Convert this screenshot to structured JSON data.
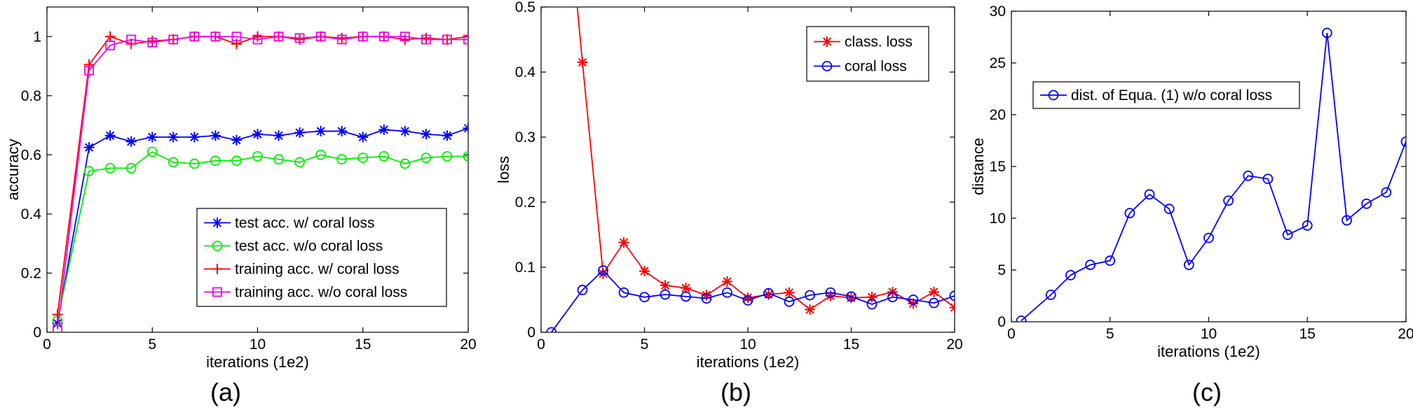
{
  "chart_data": [
    {
      "type": "line",
      "caption": "(a)",
      "xlabel": "iterations (1e2)",
      "ylabel": "accuracy",
      "xlim": [
        0,
        20
      ],
      "ylim": [
        0,
        1.1
      ],
      "xticks": [
        0,
        5,
        10,
        15,
        20
      ],
      "yticks": [
        0,
        0.2,
        0.4,
        0.6,
        0.8,
        1
      ],
      "ytick_labels": [
        "0",
        "0.2",
        "0.4",
        "0.6",
        "0.8",
        "1"
      ],
      "grid": false,
      "legend_position": "lower-right",
      "x": [
        0.5,
        2,
        3,
        4,
        5,
        6,
        7,
        8,
        9,
        10,
        11,
        12,
        13,
        14,
        15,
        16,
        17,
        18,
        19,
        20
      ],
      "series": [
        {
          "name": "test acc. w/ coral loss",
          "color": "#0000ff",
          "marker": "asterisk",
          "values": [
            0.03,
            0.625,
            0.665,
            0.645,
            0.66,
            0.66,
            0.66,
            0.665,
            0.65,
            0.67,
            0.665,
            0.675,
            0.68,
            0.68,
            0.66,
            0.685,
            0.68,
            0.67,
            0.665,
            0.69
          ]
        },
        {
          "name": "test acc. w/o coral loss",
          "color": "#00ee00",
          "marker": "circle",
          "values": [
            0.04,
            0.545,
            0.555,
            0.555,
            0.61,
            0.575,
            0.57,
            0.58,
            0.58,
            0.595,
            0.585,
            0.575,
            0.6,
            0.585,
            0.59,
            0.595,
            0.57,
            0.59,
            0.595,
            0.595
          ]
        },
        {
          "name": "training acc. w/ coral loss",
          "color": "#ff0000",
          "marker": "plus",
          "values": [
            0.06,
            0.905,
            1.0,
            0.975,
            0.985,
            0.99,
            1.0,
            1.0,
            0.975,
            1.0,
            1.0,
            0.99,
            1.0,
            0.995,
            1.0,
            1.0,
            0.99,
            0.995,
            0.99,
            1.0
          ]
        },
        {
          "name": "training acc. w/o coral loss",
          "color": "#ee00ee",
          "marker": "square",
          "values": [
            0.01,
            0.885,
            0.97,
            0.99,
            0.98,
            0.99,
            1.0,
            1.0,
            1.0,
            0.99,
            1.0,
            0.995,
            1.0,
            0.99,
            1.0,
            1.0,
            1.0,
            0.99,
            0.99,
            0.99
          ]
        }
      ]
    },
    {
      "type": "line",
      "caption": "(b)",
      "xlabel": "iterations (1e2)",
      "ylabel": "loss",
      "xlim": [
        0,
        20
      ],
      "ylim": [
        0,
        0.5
      ],
      "xticks": [
        0,
        5,
        10,
        15,
        20
      ],
      "yticks": [
        0,
        0.1,
        0.2,
        0.3,
        0.4,
        0.5
      ],
      "ytick_labels": [
        "0",
        "0.1",
        "0.2",
        "0.3",
        "0.4",
        "0.5"
      ],
      "grid": false,
      "legend_position": "top-right",
      "series": [
        {
          "name": "class. loss",
          "color": "#ff0000",
          "marker": "asterisk",
          "x": [
            2,
            3,
            4,
            5,
            6,
            7,
            8,
            9,
            10,
            11,
            12,
            13,
            14,
            15,
            16,
            17,
            18,
            19,
            20
          ],
          "values": [
            0.415,
            0.09,
            0.138,
            0.094,
            0.072,
            0.068,
            0.057,
            0.078,
            0.053,
            0.058,
            0.061,
            0.035,
            0.056,
            0.053,
            0.054,
            0.062,
            0.044,
            0.062,
            0.038
          ],
          "lead_in": {
            "x": 1.75,
            "y": 0.5
          }
        },
        {
          "name": "coral loss",
          "color": "#0000ff",
          "marker": "circle",
          "x": [
            0.5,
            2,
            3,
            4,
            5,
            6,
            7,
            8,
            9,
            10,
            11,
            12,
            13,
            14,
            15,
            16,
            17,
            18,
            19,
            20
          ],
          "values": [
            0.0,
            0.065,
            0.095,
            0.061,
            0.054,
            0.058,
            0.055,
            0.052,
            0.061,
            0.049,
            0.06,
            0.047,
            0.057,
            0.061,
            0.055,
            0.043,
            0.054,
            0.05,
            0.045,
            0.056
          ]
        }
      ]
    },
    {
      "type": "line",
      "caption": "(c)",
      "xlabel": "iterations (1e2)",
      "ylabel": "distance",
      "xlim": [
        0,
        20
      ],
      "ylim": [
        0,
        30
      ],
      "xticks": [
        0,
        5,
        10,
        15,
        20
      ],
      "yticks": [
        0,
        5,
        10,
        15,
        20,
        25,
        30
      ],
      "ytick_labels": [
        "0",
        "5",
        "10",
        "15",
        "20",
        "25",
        "30"
      ],
      "grid": false,
      "legend_position": "upper-left",
      "x": [
        0.5,
        2,
        3,
        4,
        5,
        6,
        7,
        8,
        9,
        10,
        11,
        12,
        13,
        14,
        15,
        16,
        17,
        18,
        19,
        20
      ],
      "series": [
        {
          "name": "dist. of Equa. (1) w/o coral loss",
          "color": "#0000ff",
          "marker": "circle",
          "values": [
            0.1,
            2.6,
            4.5,
            5.5,
            5.9,
            10.5,
            12.3,
            10.9,
            5.5,
            8.1,
            11.7,
            14.1,
            13.8,
            8.4,
            9.3,
            27.9,
            9.8,
            11.4,
            12.5,
            17.4
          ]
        }
      ]
    }
  ]
}
